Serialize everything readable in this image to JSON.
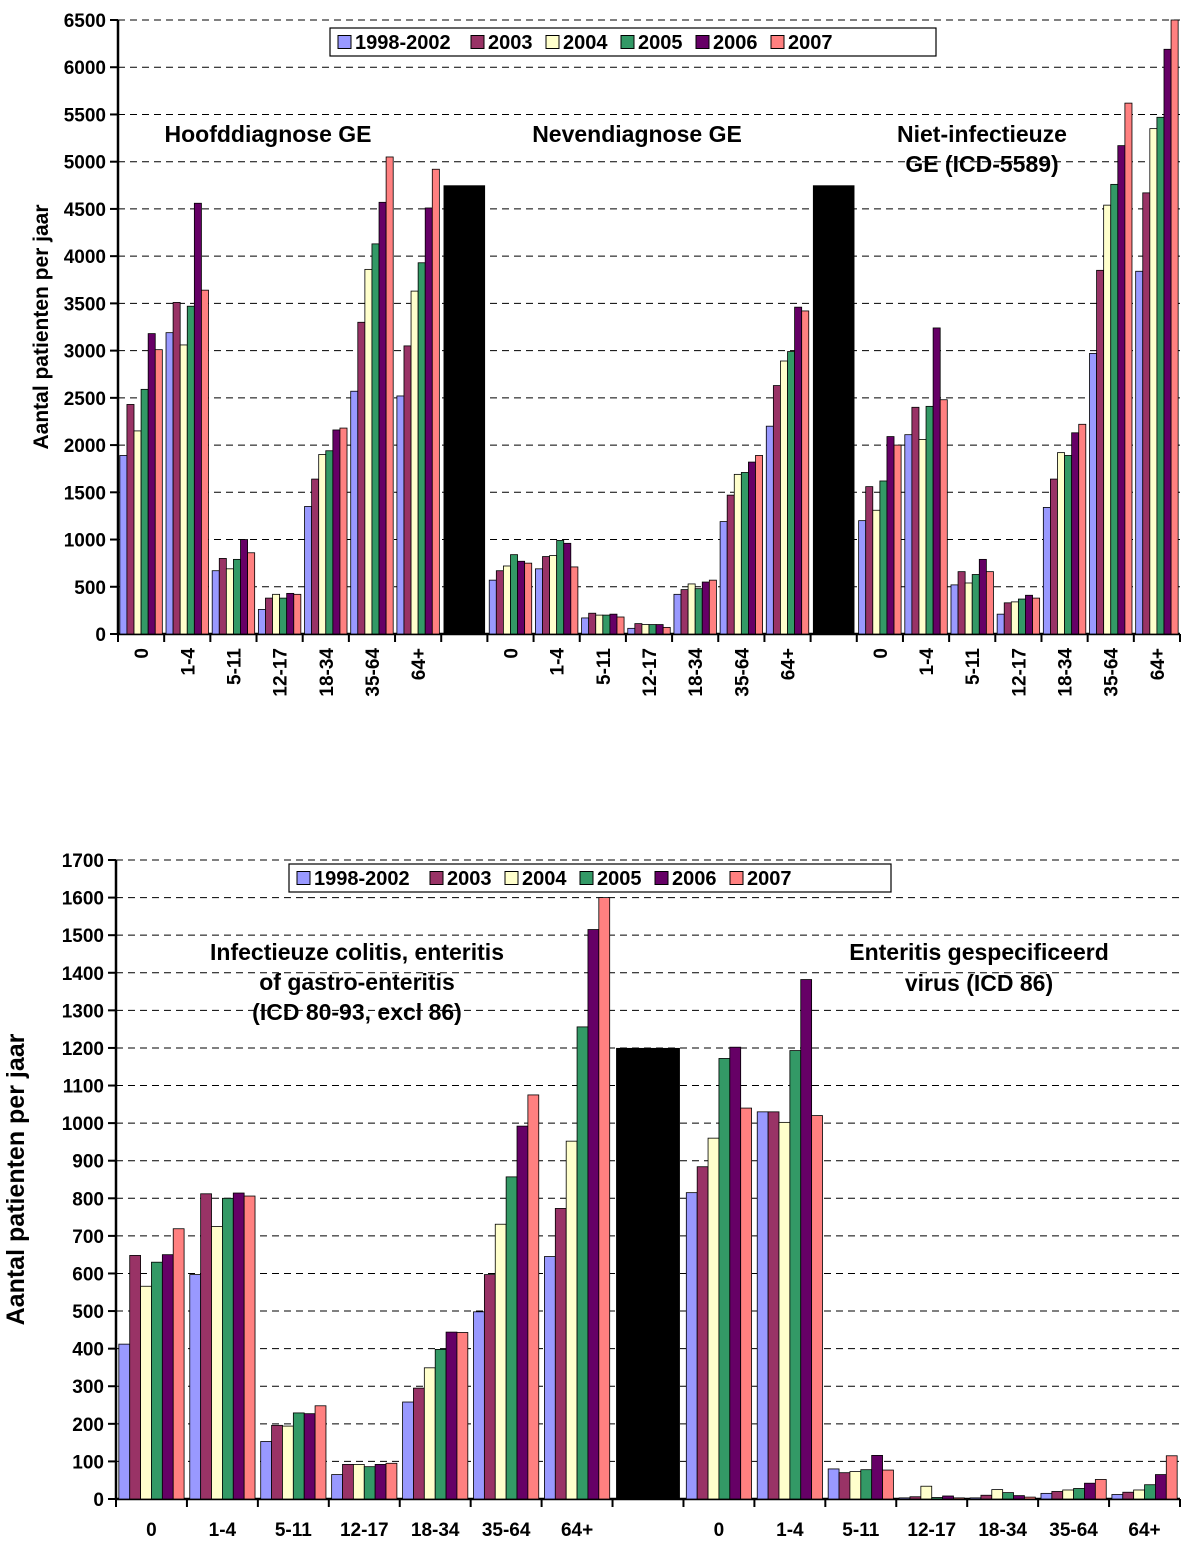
{
  "colors": {
    "1998-2002": "#9999ff",
    "2003": "#993366",
    "2004": "#ffffcc",
    "2005": "#339966",
    "2006": "#660066",
    "2007": "#ff8080",
    "separator": "#000000"
  },
  "chart_data": [
    {
      "type": "bar",
      "ylabel": "Aantal patienten per jaar",
      "ylim": [
        0,
        6500
      ],
      "yticks": [
        0,
        500,
        1000,
        1500,
        2000,
        2500,
        3000,
        3500,
        4000,
        4500,
        5000,
        5500,
        6000,
        6500
      ],
      "grid": true,
      "legend": {
        "placement": "top-center",
        "entries": [
          "1998-2002",
          "2003",
          "2004",
          "2005",
          "2006",
          "2007"
        ]
      },
      "separator_value": 4750,
      "groups": [
        {
          "label": "Hoofddiagnose GE",
          "label_lines": [
            "Hoofddiagnose GE"
          ],
          "categories": [
            "0",
            "1-4",
            "5-11",
            "12-17",
            "18-34",
            "35-64",
            "64+"
          ],
          "series": [
            {
              "name": "1998-2002",
              "values": [
                1890,
                3190,
                670,
                260,
                1350,
                2570,
                2520
              ]
            },
            {
              "name": "2003",
              "values": [
                2430,
                3510,
                800,
                380,
                1640,
                3300,
                3050
              ]
            },
            {
              "name": "2004",
              "values": [
                2150,
                3060,
                690,
                420,
                1900,
                3860,
                3630
              ]
            },
            {
              "name": "2005",
              "values": [
                2590,
                3470,
                790,
                380,
                1940,
                4130,
                3930
              ]
            },
            {
              "name": "2006",
              "values": [
                3180,
                4560,
                1000,
                430,
                2160,
                4570,
                4510
              ]
            },
            {
              "name": "2007",
              "values": [
                3010,
                3640,
                860,
                420,
                2180,
                5050,
                4920
              ]
            }
          ]
        },
        {
          "label": "Nevendiagnose GE",
          "label_lines": [
            "Nevendiagnose GE"
          ],
          "categories": [
            "0",
            "1-4",
            "5-11",
            "12-17",
            "18-34",
            "35-64",
            "64+"
          ],
          "series": [
            {
              "name": "1998-2002",
              "values": [
                570,
                690,
                170,
                60,
                420,
                1190,
                2200
              ]
            },
            {
              "name": "2003",
              "values": [
                670,
                820,
                220,
                110,
                470,
                1470,
                2630
              ]
            },
            {
              "name": "2004",
              "values": [
                720,
                830,
                200,
                100,
                530,
                1690,
                2890
              ]
            },
            {
              "name": "2005",
              "values": [
                840,
                990,
                200,
                100,
                480,
                1710,
                2990
              ]
            },
            {
              "name": "2006",
              "values": [
                770,
                960,
                210,
                100,
                550,
                1820,
                3460
              ]
            },
            {
              "name": "2007",
              "values": [
                750,
                710,
                180,
                70,
                570,
                1890,
                3420
              ]
            }
          ]
        },
        {
          "label": "Niet-infectieuze GE (ICD-5589)",
          "label_lines": [
            "Niet-infectieuze",
            "GE (ICD-5589)"
          ],
          "categories": [
            "0",
            "1-4",
            "5-11",
            "12-17",
            "18-34",
            "35-64",
            "64+"
          ],
          "series": [
            {
              "name": "1998-2002",
              "values": [
                1200,
                2110,
                520,
                210,
                1340,
                2970,
                3840
              ]
            },
            {
              "name": "2003",
              "values": [
                1560,
                2400,
                660,
                330,
                1640,
                3850,
                4670
              ]
            },
            {
              "name": "2004",
              "values": [
                1310,
                2060,
                540,
                340,
                1920,
                4540,
                5350
              ]
            },
            {
              "name": "2005",
              "values": [
                1620,
                2410,
                630,
                370,
                1890,
                4760,
                5470
              ]
            },
            {
              "name": "2006",
              "values": [
                2090,
                3240,
                790,
                410,
                2130,
                5170,
                6190
              ]
            },
            {
              "name": "2007",
              "values": [
                2000,
                2480,
                660,
                380,
                2220,
                5620,
                6500
              ]
            }
          ]
        }
      ]
    },
    {
      "type": "bar",
      "ylabel": "Aantal patienten per jaar",
      "ylim": [
        0,
        1700
      ],
      "yticks": [
        0,
        100,
        200,
        300,
        400,
        500,
        600,
        700,
        800,
        900,
        1000,
        1100,
        1200,
        1300,
        1400,
        1500,
        1600,
        1700
      ],
      "grid": true,
      "legend": {
        "placement": "top-center",
        "entries": [
          "1998-2002",
          "2003",
          "2004",
          "2005",
          "2006",
          "2007"
        ]
      },
      "separator_value": 1200,
      "groups": [
        {
          "label": "Infectieuze colitis, enteritis of gastro-enteritis (ICD 80-93, excl 86)",
          "label_lines": [
            "Infectieuze colitis, enteritis",
            "of gastro-enteritis",
            "(ICD 80-93, excl 86)"
          ],
          "categories": [
            "0",
            "1-4",
            "5-11",
            "12-17",
            "18-34",
            "35-64",
            "64+"
          ],
          "series": [
            {
              "name": "1998-2002",
              "values": [
                412,
                597,
                153,
                65,
                258,
                498,
                645
              ]
            },
            {
              "name": "2003",
              "values": [
                648,
                812,
                196,
                92,
                295,
                597,
                773
              ]
            },
            {
              "name": "2004",
              "values": [
                566,
                725,
                194,
                92,
                349,
                731,
                952
              ]
            },
            {
              "name": "2005",
              "values": [
                630,
                800,
                229,
                86,
                398,
                857,
                1256
              ]
            },
            {
              "name": "2006",
              "values": [
                650,
                814,
                227,
                92,
                444,
                992,
                1515
              ]
            },
            {
              "name": "2007",
              "values": [
                719,
                806,
                248,
                95,
                443,
                1075,
                1600
              ]
            }
          ]
        },
        {
          "label": "Enteritis gespecificeerd virus (ICD 86)",
          "label_lines": [
            "Enteritis gespecificeerd",
            "virus  (ICD 86)"
          ],
          "categories": [
            "0",
            "1-4",
            "5-11",
            "12-17",
            "18-34",
            "35-64",
            "64+"
          ],
          "series": [
            {
              "name": "1998-2002",
              "values": [
                815,
                1030,
                80,
                3,
                3,
                15,
                12
              ]
            },
            {
              "name": "2003",
              "values": [
                884,
                1030,
                70,
                6,
                10,
                20,
                18
              ]
            },
            {
              "name": "2004",
              "values": [
                960,
                1002,
                73,
                34,
                25,
                24,
                24
              ]
            },
            {
              "name": "2005",
              "values": [
                1172,
                1193,
                78,
                4,
                17,
                28,
                38
              ]
            },
            {
              "name": "2006",
              "values": [
                1202,
                1382,
                116,
                8,
                9,
                42,
                65
              ]
            },
            {
              "name": "2007",
              "values": [
                1040,
                1020,
                77,
                3,
                5,
                52,
                115
              ]
            }
          ]
        }
      ]
    }
  ]
}
